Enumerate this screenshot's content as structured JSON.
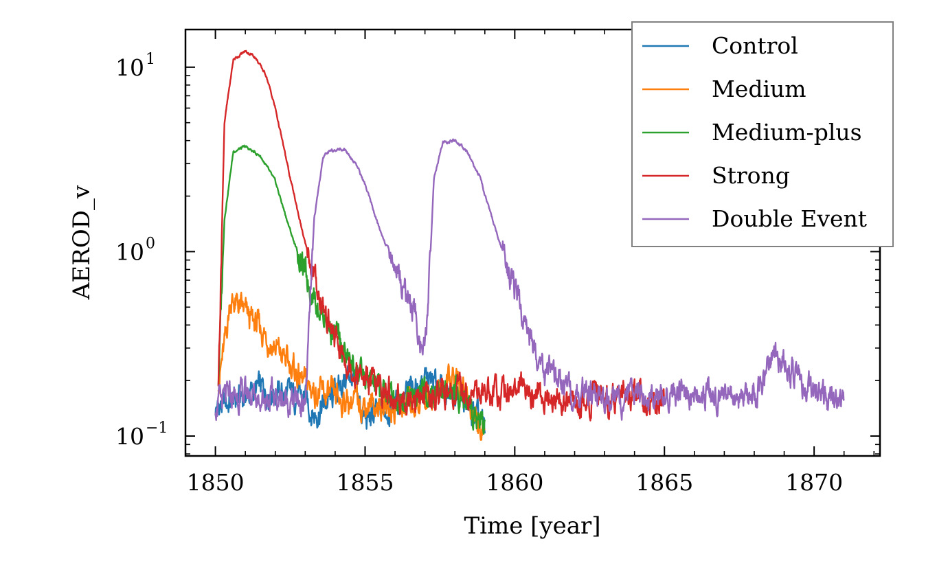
{
  "chart_data": {
    "type": "line",
    "xlabel": "Time [year]",
    "ylabel": "AEROD_v",
    "xlim": [
      1849,
      1872.2
    ],
    "ylim": [
      0.078,
      16
    ],
    "yscale": "log",
    "x_ticks": [
      1850,
      1855,
      1860,
      1865,
      1870
    ],
    "x_tick_labels": [
      "1850",
      "1855",
      "1860",
      "1865",
      "1870"
    ],
    "y_ticks": [
      {
        "value": 0.1,
        "base": "10",
        "exp": "−1"
      },
      {
        "value": 1,
        "base": "10",
        "exp": "0"
      },
      {
        "value": 10,
        "base": "10",
        "exp": "1"
      }
    ],
    "legend_position": "top-right",
    "series": [
      {
        "name": "Control",
        "color": "#1f77b4",
        "x": [
          1850.0,
          1851.5,
          1853.0,
          1853.3,
          1854.0,
          1854.5,
          1855.0,
          1856.0,
          1857.0,
          1858.0,
          1859.0
        ],
        "y": [
          0.14,
          0.18,
          0.16,
          0.13,
          0.17,
          0.22,
          0.12,
          0.15,
          0.2,
          0.17,
          0.11
        ]
      },
      {
        "name": "Medium",
        "color": "#ff7f0e",
        "x": [
          1850.1,
          1850.3,
          1850.5,
          1850.8,
          1851.2,
          1851.5,
          1852.0,
          1852.5,
          1853.0,
          1853.5,
          1854.0,
          1855.0,
          1856.0,
          1857.0,
          1858.0,
          1859.0
        ],
        "y": [
          0.2,
          0.3,
          0.55,
          0.5,
          0.42,
          0.38,
          0.3,
          0.24,
          0.19,
          0.17,
          0.16,
          0.15,
          0.14,
          0.16,
          0.2,
          0.11
        ]
      },
      {
        "name": "Medium-plus",
        "color": "#2ca02c",
        "x": [
          1850.1,
          1850.3,
          1850.6,
          1851.0,
          1851.5,
          1852.0,
          1852.5,
          1853.0,
          1853.5,
          1854.0,
          1854.5,
          1855.0,
          1856.0,
          1857.0,
          1858.0,
          1859.0
        ],
        "y": [
          0.2,
          1.5,
          3.5,
          3.7,
          3.3,
          2.4,
          1.3,
          0.75,
          0.5,
          0.35,
          0.25,
          0.2,
          0.16,
          0.17,
          0.18,
          0.12
        ]
      },
      {
        "name": "Strong",
        "color": "#d62728",
        "x": [
          1850.1,
          1850.3,
          1850.6,
          1851.0,
          1851.3,
          1851.7,
          1852.0,
          1852.5,
          1853.0,
          1853.5,
          1854.0,
          1854.5,
          1855.0,
          1856.0,
          1858.0,
          1860.0,
          1862.0,
          1864.0,
          1865.0
        ],
        "y": [
          0.2,
          5.0,
          11.0,
          12.2,
          11.5,
          9.0,
          6.0,
          2.5,
          1.1,
          0.55,
          0.33,
          0.24,
          0.2,
          0.16,
          0.17,
          0.18,
          0.15,
          0.17,
          0.16
        ]
      },
      {
        "name": "Double Event",
        "color": "#9467bd",
        "x": [
          1850.0,
          1851.0,
          1852.0,
          1853.0,
          1853.1,
          1853.3,
          1853.6,
          1854.0,
          1854.3,
          1854.7,
          1855.0,
          1855.5,
          1856.0,
          1856.5,
          1857.0,
          1857.1,
          1857.3,
          1857.6,
          1858.0,
          1858.4,
          1858.8,
          1859.2,
          1859.6,
          1860.0,
          1860.5,
          1861.0,
          1862.0,
          1864.0,
          1866.0,
          1868.0,
          1868.7,
          1870.0,
          1871.0
        ],
        "y": [
          0.15,
          0.17,
          0.16,
          0.15,
          0.3,
          1.5,
          3.3,
          3.6,
          3.6,
          3.0,
          2.3,
          1.3,
          0.85,
          0.55,
          0.27,
          0.5,
          2.5,
          3.9,
          4.0,
          3.5,
          2.6,
          1.6,
          1.0,
          0.6,
          0.35,
          0.22,
          0.17,
          0.16,
          0.17,
          0.16,
          0.28,
          0.17,
          0.15
        ]
      }
    ]
  }
}
